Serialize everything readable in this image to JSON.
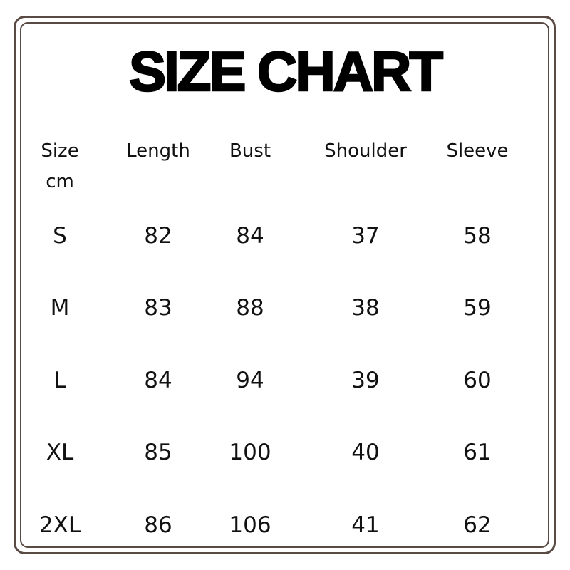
{
  "title": "SIZE CHART",
  "headers": [
    "Size",
    "Length",
    "Bust",
    "Shoulder",
    "Sleeve"
  ],
  "unit": "cm",
  "rows": [
    [
      "S",
      "82",
      "84",
      "37",
      "58"
    ],
    [
      "M",
      "83",
      "88",
      "38",
      "59"
    ],
    [
      "L",
      "84",
      "94",
      "39",
      "60"
    ],
    [
      "XL",
      "85",
      "100",
      "40",
      "61"
    ],
    [
      "2XL",
      "86",
      "106",
      "41",
      "62"
    ]
  ],
  "colors": {
    "border": "#5a4a44",
    "text": "#111111"
  }
}
